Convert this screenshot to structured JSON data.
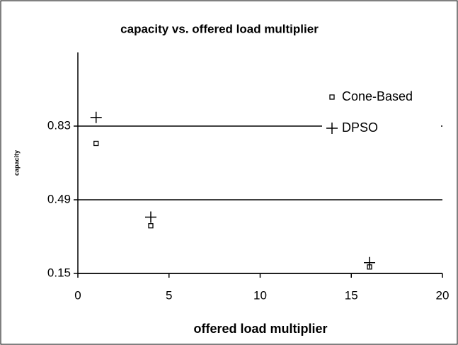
{
  "chart_data": {
    "type": "scatter",
    "title": "capacity vs. offered load multiplier",
    "xlabel": "offered load multiplier",
    "ylabel": "capacity",
    "series": [
      {
        "name": "Cone-Based",
        "marker": "square",
        "color": "#000000",
        "x": [
          1,
          4,
          16
        ],
        "values": [
          0.75,
          0.37,
          0.18
        ]
      },
      {
        "name": "DPSO",
        "marker": "plus",
        "color": "#000000",
        "x": [
          1,
          4,
          16
        ],
        "values": [
          0.87,
          0.41,
          0.2
        ]
      }
    ],
    "xlim": [
      0,
      20
    ],
    "xticks": [
      0,
      5,
      10,
      15,
      20
    ],
    "ylim": [
      0.15,
      1.17
    ],
    "yticks": [
      0.15,
      0.49,
      0.83
    ],
    "grid": true,
    "legend": "upper right"
  }
}
